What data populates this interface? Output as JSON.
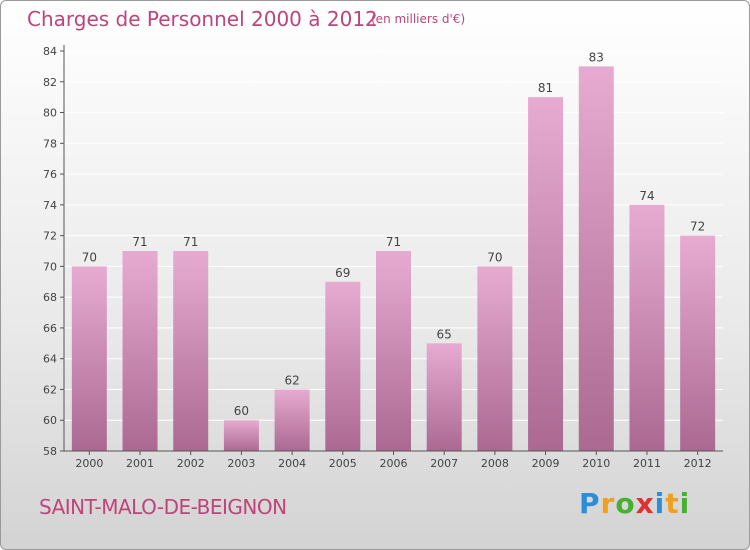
{
  "title": "Charges de Personnel 2000 à 2012",
  "subtitle": "(en milliers d'€)",
  "commune": "SAINT-MALO-DE-BEIGNON",
  "logo": {
    "letters": [
      "P",
      "r",
      "o",
      "x",
      "i",
      "t",
      "i"
    ],
    "colors": [
      "#2a8fd8",
      "#f0a020",
      "#48b030",
      "#e03030",
      "#2a8fd8",
      "#f0a020",
      "#48b030"
    ]
  },
  "colors": {
    "accent": "#c0437a",
    "bar_light": "#e7abd1",
    "bar_dark": "#ab6992",
    "axis": "#555555"
  },
  "chart_data": {
    "type": "bar",
    "categories": [
      "2000",
      "2001",
      "2002",
      "2003",
      "2004",
      "2005",
      "2006",
      "2007",
      "2008",
      "2009",
      "2010",
      "2011",
      "2012"
    ],
    "values": [
      70,
      71,
      71,
      60,
      62,
      69,
      71,
      65,
      70,
      81,
      83,
      74,
      72
    ],
    "data_labels": [
      "70",
      "71",
      "71",
      "60",
      "62",
      "69",
      "71",
      "65",
      "70",
      "81",
      "83",
      "74",
      "72"
    ],
    "yticks": [
      "58",
      "60",
      "62",
      "64",
      "66",
      "68",
      "70",
      "72",
      "74",
      "76",
      "78",
      "80",
      "82",
      "84"
    ],
    "ylim": [
      58,
      84
    ],
    "grid": true,
    "legend": "none"
  }
}
